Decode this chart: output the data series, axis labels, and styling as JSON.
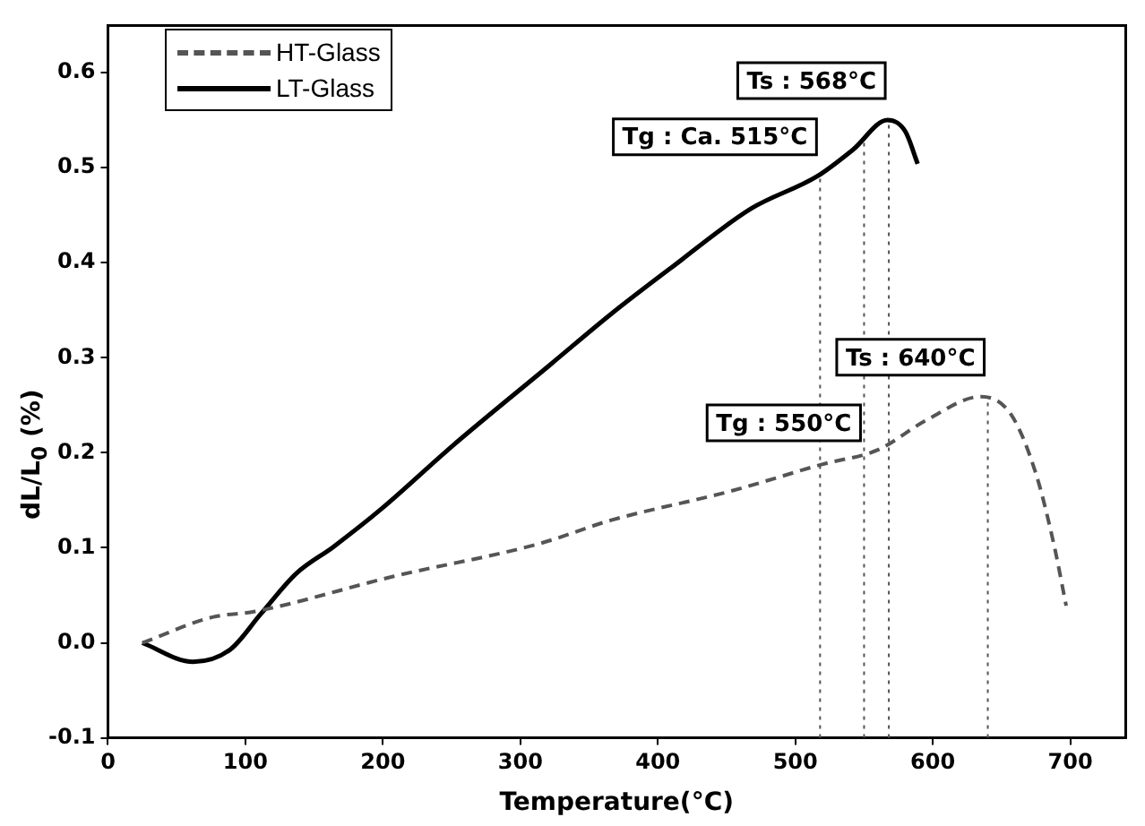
{
  "chart_data": {
    "type": "line",
    "xlabel": "Temperature(°C)",
    "ylabel": "dL/L$_{0}$ (%)",
    "xlim": [
      0,
      740
    ],
    "xticks": [
      0,
      100,
      200,
      300,
      400,
      500,
      600,
      700
    ],
    "ylim": [
      -0.1,
      0.65
    ],
    "yticks": [
      -0.1,
      {
        "value": 0,
        "label": "0.0"
      },
      0.1,
      0.2,
      0.3,
      0.4,
      0.5,
      0.6
    ],
    "grid": false,
    "legend": "top left",
    "marker": "none",
    "series": [
      {
        "name": "HT-Glass",
        "color": "#555555",
        "line_style": "dashed",
        "x": [
          25,
          76,
          107,
          208,
          313,
          366,
          454,
          520,
          560,
          595,
          635,
          657,
          675,
          688,
          697
        ],
        "values": [
          0,
          0.027,
          0.033,
          0.07,
          0.104,
          0.129,
          0.16,
          0.188,
          0.203,
          0.234,
          0.259,
          0.24,
          0.178,
          0.104,
          0.039
        ]
      },
      {
        "name": "LT-Glass",
        "color": "#000000",
        "line_style": "solid",
        "x": [
          25,
          62,
          89,
          111,
          137,
          164,
          199,
          252,
          322,
          366,
          410,
          468,
          516,
          542,
          567,
          580,
          589
        ],
        "values": [
          0,
          -0.02,
          -0.007,
          0.03,
          0.073,
          0.101,
          0.141,
          0.209,
          0.293,
          0.346,
          0.395,
          0.457,
          0.491,
          0.519,
          0.55,
          0.538,
          0.504
        ]
      }
    ],
    "ref_lines": [
      {
        "axis": "x",
        "value": 518,
        "color": "#555555",
        "line_style": "dotted"
      },
      {
        "axis": "x",
        "value": 550,
        "color": "#555555",
        "line_style": "dotted"
      },
      {
        "axis": "x",
        "value": 568,
        "color": "#555555",
        "line_style": "dotted"
      },
      {
        "axis": "x",
        "value": 640,
        "color": "#555555",
        "line_style": "dotted"
      }
    ],
    "annotations": [
      {
        "text": "Ts : 568°C",
        "x": 568,
        "y": 0.55
      },
      {
        "text": "Tg : Ca. 515°C",
        "x": 518,
        "y": 0.491
      },
      {
        "text": "Ts : 640°C",
        "x": 640,
        "y": 0.259
      },
      {
        "text": "Tg : 550°C",
        "x": 550,
        "y": 0.19
      }
    ]
  }
}
